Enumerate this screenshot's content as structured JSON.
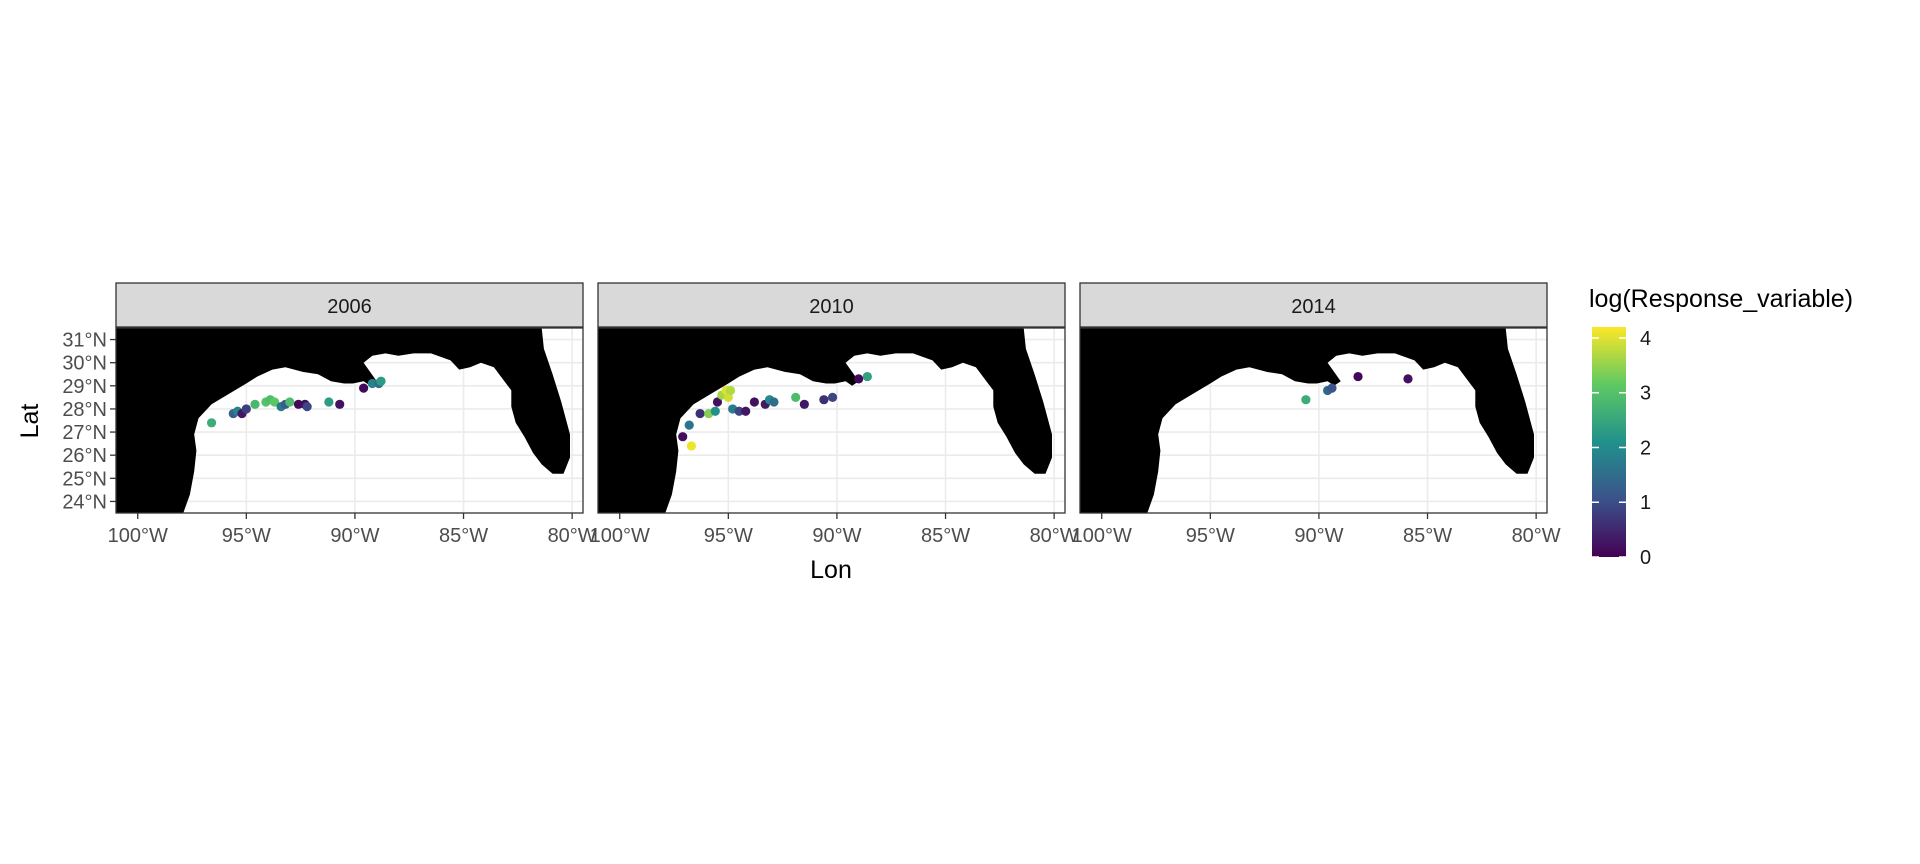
{
  "chart_data": {
    "type": "scatter",
    "xlabel": "Lon",
    "ylabel": "Lat",
    "xlim": [
      -101,
      -79.5
    ],
    "ylim": [
      23.5,
      31.5
    ],
    "x_ticks": [
      -100,
      -95,
      -90,
      -85,
      -80
    ],
    "x_tick_labels": [
      "100°W",
      "95°W",
      "90°W",
      "85°W",
      "80°W"
    ],
    "y_ticks": [
      24,
      25,
      26,
      27,
      28,
      29,
      30,
      31
    ],
    "y_tick_labels": [
      "24°N",
      "25°N",
      "26°N",
      "27°N",
      "28°N",
      "29°N",
      "30°N",
      "31°N"
    ],
    "grid": true,
    "basemap": "land",
    "legend": {
      "title": "log(Response_variable)",
      "type": "colorbar",
      "position": "right",
      "palette": [
        "#440154",
        "#3b528b",
        "#21918c",
        "#5ec962",
        "#fde725"
      ],
      "range": [
        0,
        4.2
      ],
      "ticks": [
        0,
        1,
        2,
        3,
        4
      ],
      "tick_labels": [
        "0",
        "1",
        "2",
        "3",
        "4"
      ]
    },
    "facets": [
      {
        "label": "2006",
        "points": [
          {
            "lon": -96.6,
            "lat": 27.4,
            "value": 2.6
          },
          {
            "lon": -95.6,
            "lat": 27.8,
            "value": 1.3
          },
          {
            "lon": -95.4,
            "lat": 27.9,
            "value": 1.9
          },
          {
            "lon": -95.2,
            "lat": 27.8,
            "value": 0.3
          },
          {
            "lon": -95.0,
            "lat": 28.0,
            "value": 0.8
          },
          {
            "lon": -94.6,
            "lat": 28.2,
            "value": 2.8
          },
          {
            "lon": -94.1,
            "lat": 28.3,
            "value": 3.0
          },
          {
            "lon": -93.9,
            "lat": 28.4,
            "value": 2.9
          },
          {
            "lon": -93.7,
            "lat": 28.3,
            "value": 3.1
          },
          {
            "lon": -93.4,
            "lat": 28.1,
            "value": 1.7
          },
          {
            "lon": -93.2,
            "lat": 28.2,
            "value": 1.2
          },
          {
            "lon": -93.0,
            "lat": 28.3,
            "value": 2.9
          },
          {
            "lon": -92.6,
            "lat": 28.2,
            "value": 0.1
          },
          {
            "lon": -92.3,
            "lat": 28.2,
            "value": 0.2
          },
          {
            "lon": -92.2,
            "lat": 28.1,
            "value": 0.9
          },
          {
            "lon": -91.2,
            "lat": 28.3,
            "value": 2.3
          },
          {
            "lon": -90.7,
            "lat": 28.2,
            "value": 0.2
          },
          {
            "lon": -89.6,
            "lat": 28.9,
            "value": 0.1
          },
          {
            "lon": -89.2,
            "lat": 29.1,
            "value": 1.9
          },
          {
            "lon": -88.9,
            "lat": 29.1,
            "value": 1.5
          },
          {
            "lon": -88.8,
            "lat": 29.2,
            "value": 2.3
          }
        ]
      },
      {
        "label": "2010",
        "points": [
          {
            "lon": -96.8,
            "lat": 27.3,
            "value": 1.6
          },
          {
            "lon": -97.1,
            "lat": 26.8,
            "value": 0.2
          },
          {
            "lon": -96.7,
            "lat": 26.4,
            "value": 4.1
          },
          {
            "lon": -96.3,
            "lat": 27.8,
            "value": 0.6
          },
          {
            "lon": -95.9,
            "lat": 27.8,
            "value": 3.4
          },
          {
            "lon": -95.6,
            "lat": 27.9,
            "value": 2.1
          },
          {
            "lon": -95.5,
            "lat": 28.3,
            "value": 0.2
          },
          {
            "lon": -95.3,
            "lat": 28.6,
            "value": 3.6
          },
          {
            "lon": -95.1,
            "lat": 28.8,
            "value": 4.0
          },
          {
            "lon": -95.0,
            "lat": 28.5,
            "value": 3.9
          },
          {
            "lon": -94.9,
            "lat": 28.8,
            "value": 3.7
          },
          {
            "lon": -94.8,
            "lat": 28.0,
            "value": 1.8
          },
          {
            "lon": -94.5,
            "lat": 27.9,
            "value": 0.9
          },
          {
            "lon": -94.2,
            "lat": 27.9,
            "value": 0.3
          },
          {
            "lon": -93.8,
            "lat": 28.3,
            "value": 0.2
          },
          {
            "lon": -93.3,
            "lat": 28.2,
            "value": 0.3
          },
          {
            "lon": -93.1,
            "lat": 28.4,
            "value": 2.0
          },
          {
            "lon": -92.9,
            "lat": 28.3,
            "value": 1.5
          },
          {
            "lon": -91.9,
            "lat": 28.5,
            "value": 2.9
          },
          {
            "lon": -91.5,
            "lat": 28.2,
            "value": 0.3
          },
          {
            "lon": -90.6,
            "lat": 28.4,
            "value": 0.6
          },
          {
            "lon": -90.2,
            "lat": 28.5,
            "value": 0.9
          },
          {
            "lon": -89.0,
            "lat": 29.3,
            "value": 0.1
          },
          {
            "lon": -88.6,
            "lat": 29.4,
            "value": 2.4
          }
        ]
      },
      {
        "label": "2014",
        "points": [
          {
            "lon": -90.6,
            "lat": 28.4,
            "value": 2.6
          },
          {
            "lon": -89.6,
            "lat": 28.8,
            "value": 1.4
          },
          {
            "lon": -89.4,
            "lat": 28.9,
            "value": 1.1
          },
          {
            "lon": -88.2,
            "lat": 29.4,
            "value": 0.1
          },
          {
            "lon": -85.9,
            "lat": 29.3,
            "value": 0.2
          }
        ]
      }
    ]
  }
}
